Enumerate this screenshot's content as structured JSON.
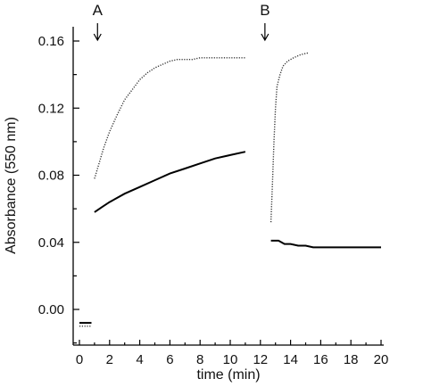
{
  "chart_data": {
    "type": "line",
    "title": "",
    "xlabel": "time (min)",
    "ylabel": "Absorbance (550 nm)",
    "xlim": [
      -0.4,
      20
    ],
    "ylim": [
      -0.02,
      0.16
    ],
    "xticks": [
      0,
      2,
      4,
      6,
      8,
      10,
      12,
      14,
      16,
      18,
      20
    ],
    "yticks": [
      0.0,
      0.04,
      0.08,
      0.12,
      0.16
    ],
    "ytick_labels": [
      "0.00",
      "0.04",
      "0.08",
      "0.12",
      "0.16"
    ],
    "grid": false,
    "legend": "none",
    "annotations": [
      {
        "text": "A",
        "x": 1.2
      },
      {
        "text": "B",
        "x": 12.3
      }
    ],
    "series": [
      {
        "style": "solid",
        "segment": "baseline",
        "x": [
          0.0,
          0.8
        ],
        "y": [
          -0.008,
          -0.008
        ]
      },
      {
        "style": "dotted",
        "segment": "baseline",
        "x": [
          0.0,
          0.8
        ],
        "y": [
          -0.01,
          -0.01
        ]
      },
      {
        "style": "dotted",
        "segment": "A",
        "x": [
          1.0,
          1.3,
          1.6,
          2.0,
          2.5,
          3.0,
          3.5,
          4.0,
          4.5,
          5.0,
          5.5,
          6.0,
          6.5,
          7.0,
          7.5,
          8.0,
          9.0,
          10.0,
          11.0
        ],
        "y": [
          0.078,
          0.087,
          0.096,
          0.106,
          0.116,
          0.125,
          0.131,
          0.137,
          0.141,
          0.144,
          0.146,
          0.148,
          0.149,
          0.149,
          0.149,
          0.15,
          0.15,
          0.15,
          0.15
        ]
      },
      {
        "style": "solid",
        "segment": "A",
        "x": [
          1.0,
          1.5,
          2.0,
          3.0,
          4.0,
          5.0,
          6.0,
          7.0,
          8.0,
          9.0,
          10.0,
          11.0
        ],
        "y": [
          0.058,
          0.061,
          0.064,
          0.069,
          0.073,
          0.077,
          0.081,
          0.084,
          0.087,
          0.09,
          0.092,
          0.094
        ]
      },
      {
        "style": "dotted",
        "segment": "B",
        "x": [
          12.7,
          12.8,
          12.9,
          13.0,
          13.1,
          13.3,
          13.5,
          13.8,
          14.2,
          14.7,
          15.2
        ],
        "y": [
          0.052,
          0.075,
          0.1,
          0.12,
          0.133,
          0.14,
          0.145,
          0.148,
          0.15,
          0.152,
          0.153
        ]
      },
      {
        "style": "solid",
        "segment": "B",
        "x": [
          12.7,
          13.2,
          13.6,
          14.0,
          14.5,
          15.0,
          15.5,
          16.0,
          17.0,
          18.0,
          19.0,
          20.0
        ],
        "y": [
          0.041,
          0.041,
          0.039,
          0.039,
          0.038,
          0.038,
          0.037,
          0.037,
          0.037,
          0.037,
          0.037,
          0.037
        ]
      }
    ]
  }
}
